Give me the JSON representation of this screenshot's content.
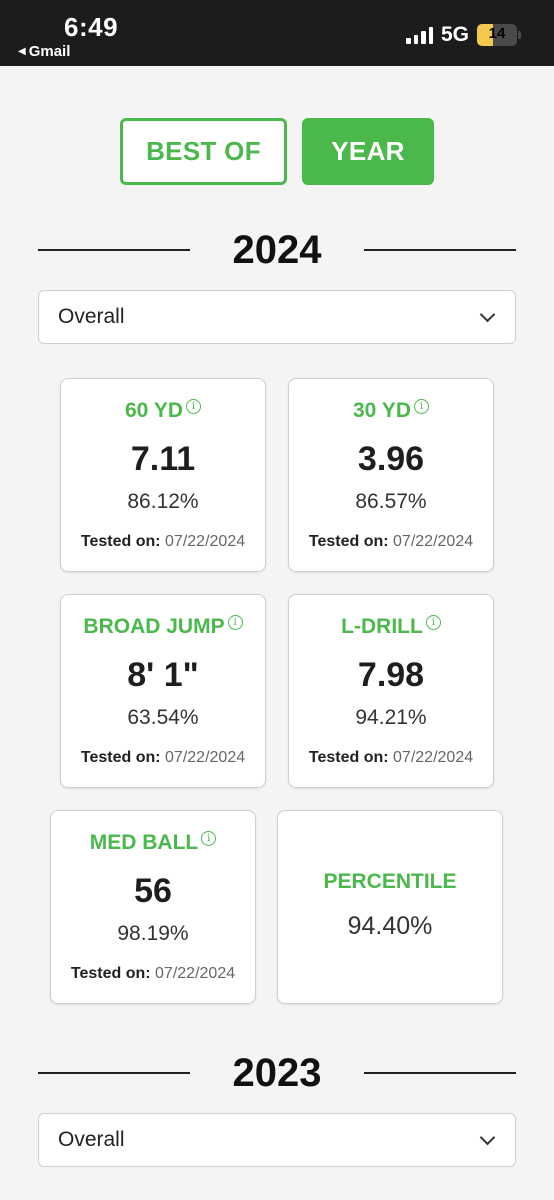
{
  "status_bar": {
    "time": "6:49",
    "back_app": "Gmail",
    "network": "5G",
    "battery": "14"
  },
  "toggle": {
    "best_of": "BEST OF",
    "year": "YEAR",
    "active": "YEAR",
    "accent_color": "#4bb84b"
  },
  "sections": [
    {
      "year": "2024",
      "filter": "Overall",
      "cards": [
        {
          "label": "60 YD",
          "value": "7.11",
          "percent": "86.12%",
          "tested_label": "Tested on:",
          "tested_date": "07/22/2024"
        },
        {
          "label": "30 YD",
          "value": "3.96",
          "percent": "86.57%",
          "tested_label": "Tested on:",
          "tested_date": "07/22/2024"
        },
        {
          "label": "BROAD JUMP",
          "value": "8' 1\"",
          "percent": "63.54%",
          "tested_label": "Tested on:",
          "tested_date": "07/22/2024"
        },
        {
          "label": "L-DRILL",
          "value": "7.98",
          "percent": "94.21%",
          "tested_label": "Tested on:",
          "tested_date": "07/22/2024"
        },
        {
          "label": "MED BALL",
          "value": "56",
          "percent": "98.19%",
          "tested_label": "Tested on:",
          "tested_date": "07/22/2024"
        }
      ],
      "percentile": {
        "label": "PERCENTILE",
        "value": "94.40%"
      }
    },
    {
      "year": "2023",
      "filter": "Overall"
    }
  ],
  "icons": {
    "info": "i"
  }
}
